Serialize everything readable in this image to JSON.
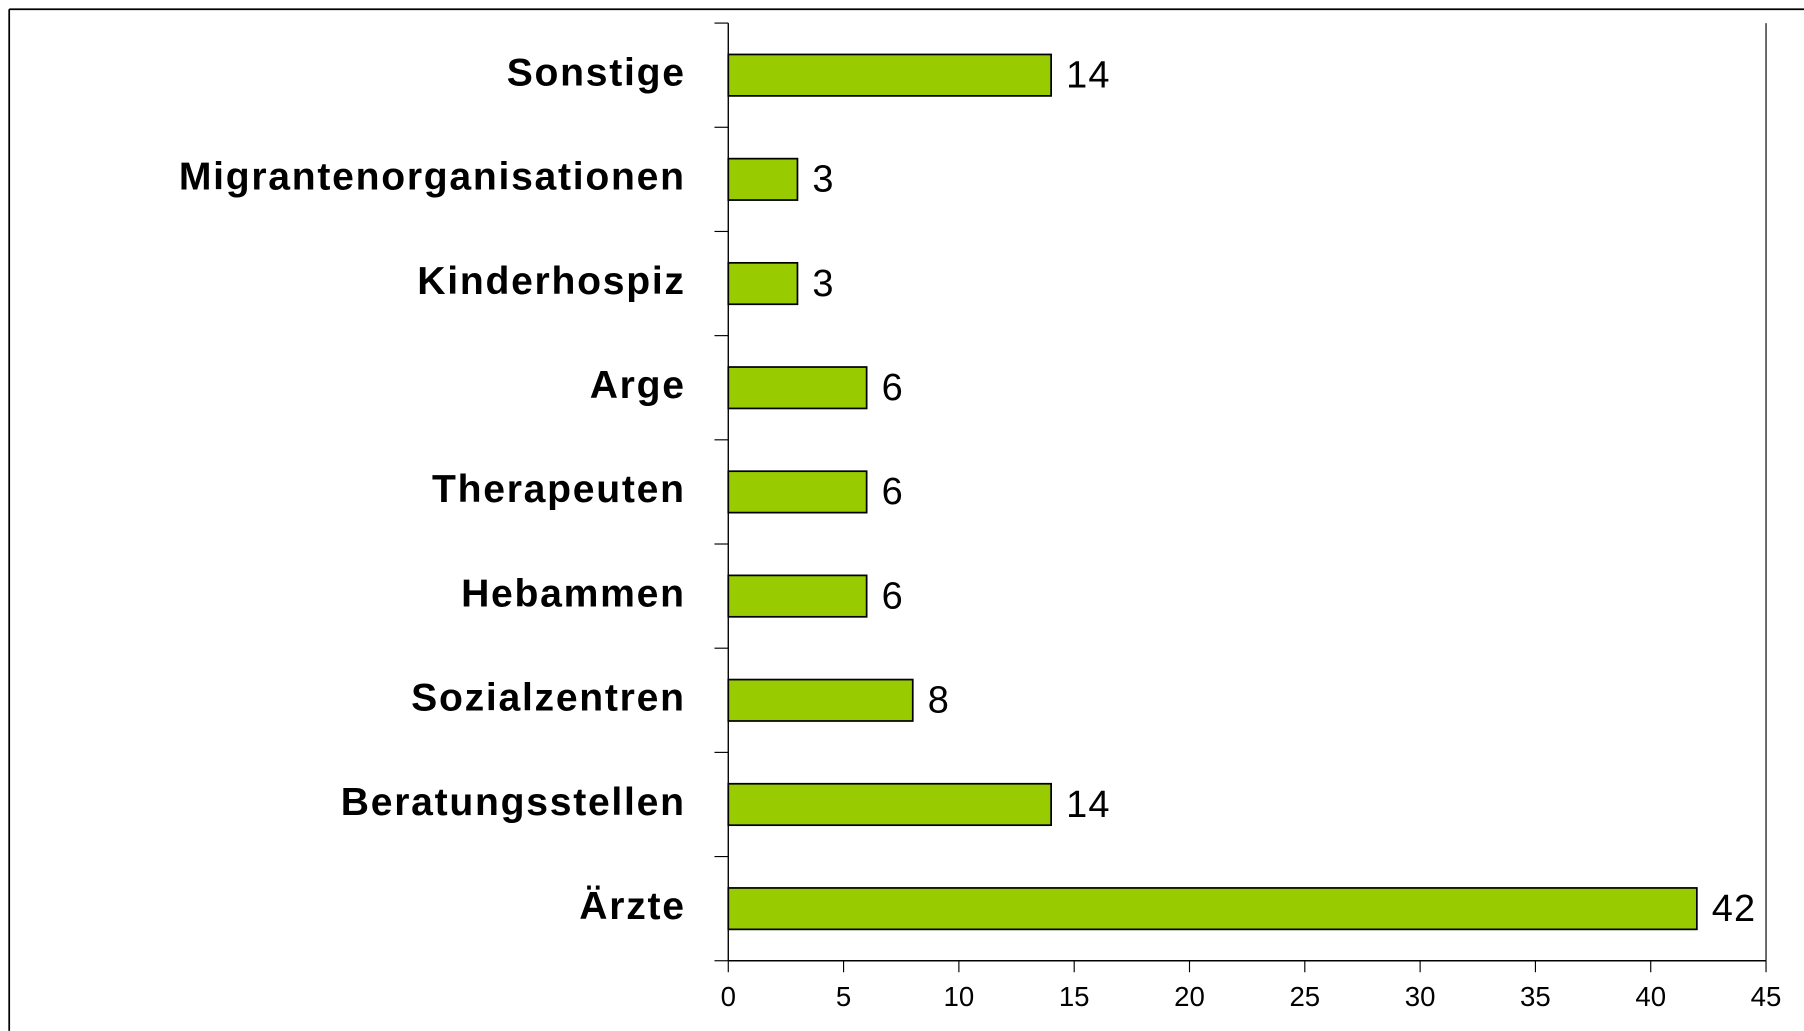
{
  "chart_data": {
    "type": "bar",
    "orientation": "horizontal",
    "categories": [
      "Sonstige",
      "Migrantenorganisationen",
      "Kinderhospiz",
      "Arge",
      "Therapeuten",
      "Hebammen",
      "Sozialzentren",
      "Beratungsstellen",
      "Ärzte"
    ],
    "values": [
      14,
      3,
      3,
      6,
      6,
      6,
      8,
      14,
      42
    ],
    "color": "#99cc00",
    "xlim": [
      0,
      45
    ],
    "xticks": [
      0,
      5,
      10,
      15,
      20,
      25,
      30,
      35,
      40,
      45
    ],
    "grid": false
  }
}
